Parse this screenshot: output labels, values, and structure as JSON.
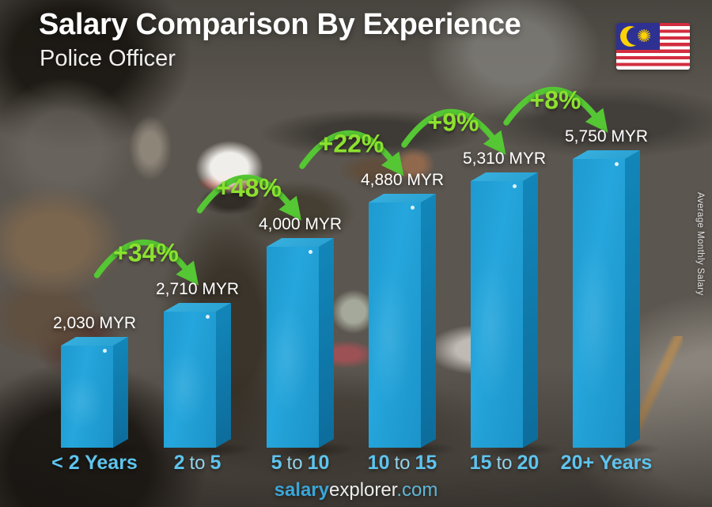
{
  "header": {
    "title": "Salary Comparison By Experience",
    "subtitle": "Police Officer"
  },
  "flag": {
    "country": "Malaysia"
  },
  "side_label": "Average Monthly Salary",
  "footer": {
    "brand_bold": "salary",
    "brand_rest": "explorer",
    "domain": ".com"
  },
  "chart_data": {
    "type": "bar",
    "title": "Salary Comparison By Experience",
    "subtitle": "Police Officer",
    "unit": "MYR",
    "categories": [
      "< 2 Years",
      "2 to 5",
      "5 to 10",
      "10 to 15",
      "15 to 20",
      "20+ Years"
    ],
    "values": [
      2030,
      2710,
      4000,
      4880,
      5310,
      5750
    ],
    "value_labels": [
      "2,030 MYR",
      "2,710 MYR",
      "4,000 MYR",
      "4,880 MYR",
      "5,310 MYR",
      "5,750 MYR"
    ],
    "pct_labels": [
      "+34%",
      "+48%",
      "+22%",
      "+9%",
      "+8%"
    ],
    "ylabel": "Average Monthly Salary",
    "x_labels": [
      {
        "pre": "< 2 Years",
        "mid": "",
        "post": ""
      },
      {
        "pre": "2",
        "mid": "to",
        "post": "5"
      },
      {
        "pre": "5",
        "mid": "to",
        "post": "10"
      },
      {
        "pre": "10",
        "mid": "to",
        "post": "15"
      },
      {
        "pre": "15",
        "mid": "to",
        "post": "20"
      },
      {
        "pre": "20+ Years",
        "mid": "",
        "post": ""
      }
    ],
    "colors": {
      "bar_front": "#1e9ad0",
      "bar_top": "#36aedd",
      "bar_side": "#0f76a6",
      "percent_text": "#8ce12f",
      "arrow_green": "#55c634",
      "category_label": "#5ec4ee",
      "value_label": "#ffffff"
    }
  }
}
